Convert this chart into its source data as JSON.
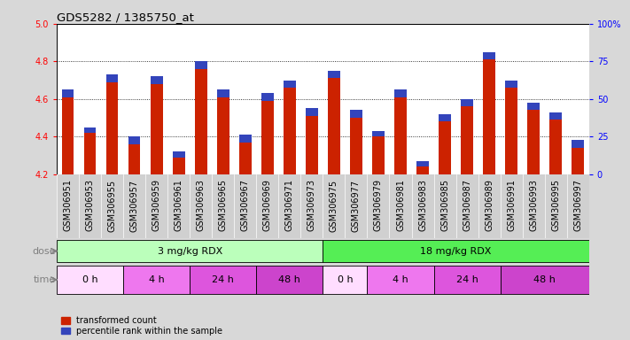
{
  "title": "GDS5282 / 1385750_at",
  "samples": [
    "GSM306951",
    "GSM306953",
    "GSM306955",
    "GSM306957",
    "GSM306959",
    "GSM306961",
    "GSM306963",
    "GSM306965",
    "GSM306967",
    "GSM306969",
    "GSM306971",
    "GSM306973",
    "GSM306975",
    "GSM306977",
    "GSM306979",
    "GSM306981",
    "GSM306983",
    "GSM306985",
    "GSM306987",
    "GSM306989",
    "GSM306991",
    "GSM306993",
    "GSM306995",
    "GSM306997"
  ],
  "transformed_count": [
    4.65,
    4.45,
    4.73,
    4.4,
    4.72,
    4.32,
    4.8,
    4.65,
    4.41,
    4.63,
    4.7,
    4.55,
    4.75,
    4.54,
    4.43,
    4.65,
    4.27,
    4.52,
    4.6,
    4.85,
    4.7,
    4.58,
    4.53,
    4.38
  ],
  "percentile_segment": [
    0.04,
    0.03,
    0.04,
    0.04,
    0.04,
    0.03,
    0.04,
    0.04,
    0.04,
    0.04,
    0.04,
    0.04,
    0.04,
    0.04,
    0.03,
    0.04,
    0.03,
    0.04,
    0.04,
    0.04,
    0.04,
    0.04,
    0.04,
    0.04
  ],
  "ymin": 4.2,
  "ymax": 5.0,
  "yticks": [
    4.2,
    4.4,
    4.6,
    4.8,
    5.0
  ],
  "right_yticks": [
    0,
    25,
    50,
    75,
    100
  ],
  "right_yticklabels": [
    "0",
    "25",
    "50",
    "75",
    "100%"
  ],
  "bar_color": "#cc2200",
  "blue_color": "#3344bb",
  "dose_groups": [
    {
      "label": "3 mg/kg RDX",
      "start": 0,
      "end": 12,
      "color": "#bbffbb"
    },
    {
      "label": "18 mg/kg RDX",
      "start": 12,
      "end": 24,
      "color": "#55ee55"
    }
  ],
  "time_groups": [
    {
      "label": "0 h",
      "start": 0,
      "end": 3,
      "color": "#ffddff"
    },
    {
      "label": "4 h",
      "start": 3,
      "end": 6,
      "color": "#ee77ee"
    },
    {
      "label": "24 h",
      "start": 6,
      "end": 9,
      "color": "#dd55dd"
    },
    {
      "label": "48 h",
      "start": 9,
      "end": 12,
      "color": "#cc44cc"
    },
    {
      "label": "0 h",
      "start": 12,
      "end": 14,
      "color": "#ffddff"
    },
    {
      "label": "4 h",
      "start": 14,
      "end": 17,
      "color": "#ee77ee"
    },
    {
      "label": "24 h",
      "start": 17,
      "end": 20,
      "color": "#dd55dd"
    },
    {
      "label": "48 h",
      "start": 20,
      "end": 24,
      "color": "#cc44cc"
    }
  ],
  "legend_items": [
    {
      "label": "transformed count",
      "color": "#cc2200"
    },
    {
      "label": "percentile rank within the sample",
      "color": "#3344bb"
    }
  ],
  "bg_color": "#d8d8d8",
  "plot_bg": "#ffffff",
  "xtick_bg": "#d0d0d0",
  "bar_width": 0.55,
  "title_fontsize": 9.5,
  "tick_fontsize": 7,
  "label_fontsize": 8,
  "dose_fontsize": 8,
  "time_fontsize": 8,
  "legend_fontsize": 7
}
